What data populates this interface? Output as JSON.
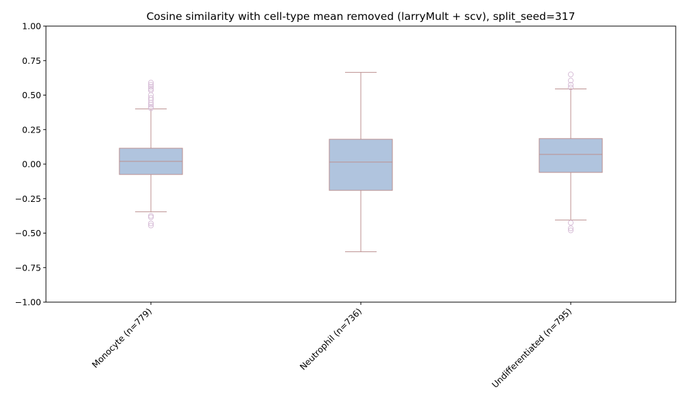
{
  "chart_data": {
    "type": "box",
    "title": "Cosine similarity with cell-type mean removed (larryMult + scv), split_seed=317",
    "xlabel": "",
    "ylabel": "",
    "ylim": [
      -1.0,
      1.0
    ],
    "yticks": [
      -1.0,
      -0.75,
      -0.5,
      -0.25,
      0.0,
      0.25,
      0.5,
      0.75,
      1.0
    ],
    "ytick_labels": [
      "−1.00",
      "−0.75",
      "−0.50",
      "−0.25",
      "0.00",
      "0.25",
      "0.50",
      "0.75",
      "1.00"
    ],
    "grid": false,
    "colors": {
      "box_fill": "#b0c4de",
      "box_edge": "#bc8f8f",
      "flier_edge": "#d8bfd8"
    },
    "categories": [
      "Monocyte (n=779)",
      "Neutrophil (n=736)",
      "Undifferentiated (n=795)"
    ],
    "boxes": [
      {
        "label": "Monocyte (n=779)",
        "q1": -0.075,
        "median": 0.02,
        "q3": 0.115,
        "whisker_low": -0.345,
        "whisker_high": 0.4,
        "fliers": [
          0.59,
          0.575,
          0.56,
          0.545,
          0.535,
          0.5,
          0.48,
          0.465,
          0.445,
          0.43,
          0.415,
          0.405,
          -0.375,
          -0.385,
          -0.43,
          -0.445
        ]
      },
      {
        "label": "Neutrophil (n=736)",
        "q1": -0.19,
        "median": 0.015,
        "q3": 0.18,
        "whisker_low": -0.635,
        "whisker_high": 0.665,
        "fliers": []
      },
      {
        "label": "Undifferentiated (n=795)",
        "q1": -0.06,
        "median": 0.07,
        "q3": 0.185,
        "whisker_low": -0.405,
        "whisker_high": 0.545,
        "fliers": [
          0.65,
          0.605,
          0.575,
          0.555,
          -0.425,
          -0.465,
          -0.48
        ]
      }
    ]
  }
}
